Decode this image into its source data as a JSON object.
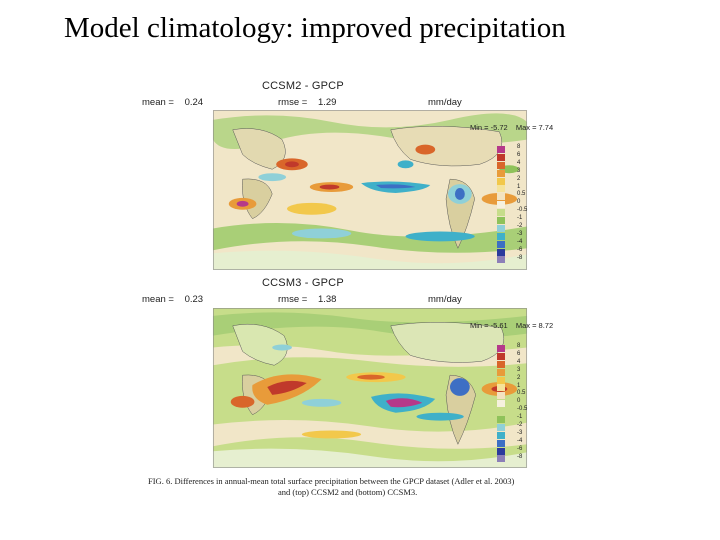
{
  "slide": {
    "title": "Model climatology: improved precipitation"
  },
  "panels": [
    {
      "title": "CCSM2 - GPCP",
      "mean_label": "mean =",
      "mean_value": "0.24",
      "rmse_label": "rmse =",
      "rmse_value": "1.29",
      "units": "mm/day",
      "min_text": "Min = -5.72",
      "max_text": "Max = 7.74"
    },
    {
      "title": "CCSM3 - GPCP",
      "mean_label": "mean =",
      "mean_value": "0.23",
      "rmse_label": "rmse =",
      "rmse_value": "1.38",
      "units": "mm/day",
      "min_text": "Min = -5.61",
      "max_text": "Max = 8.72"
    }
  ],
  "legend": {
    "levels": [
      "8",
      "6",
      "4",
      "3",
      "2",
      "1",
      "0.5",
      "0",
      "-0.5",
      "-1",
      "-2",
      "-3",
      "-4",
      "-6",
      "-8"
    ],
    "colors": [
      "#b5398a",
      "#c0392b",
      "#d9662a",
      "#e89b3a",
      "#f2c84b",
      "#f5e39a",
      "#f3e3c0",
      "#f6f1de",
      "#c7dd8a",
      "#8fc25a",
      "#8fd0d8",
      "#3fb0c9",
      "#3d6fc4",
      "#2b3a9c",
      "#8c7fb8"
    ]
  },
  "caption": {
    "line1": "FIG. 6. Differences in annual-mean total surface precipitation between the GPCP dataset (Adler et al. 2003)",
    "line2": "and (top) CCSM2 and (bottom) CCSM3."
  }
}
